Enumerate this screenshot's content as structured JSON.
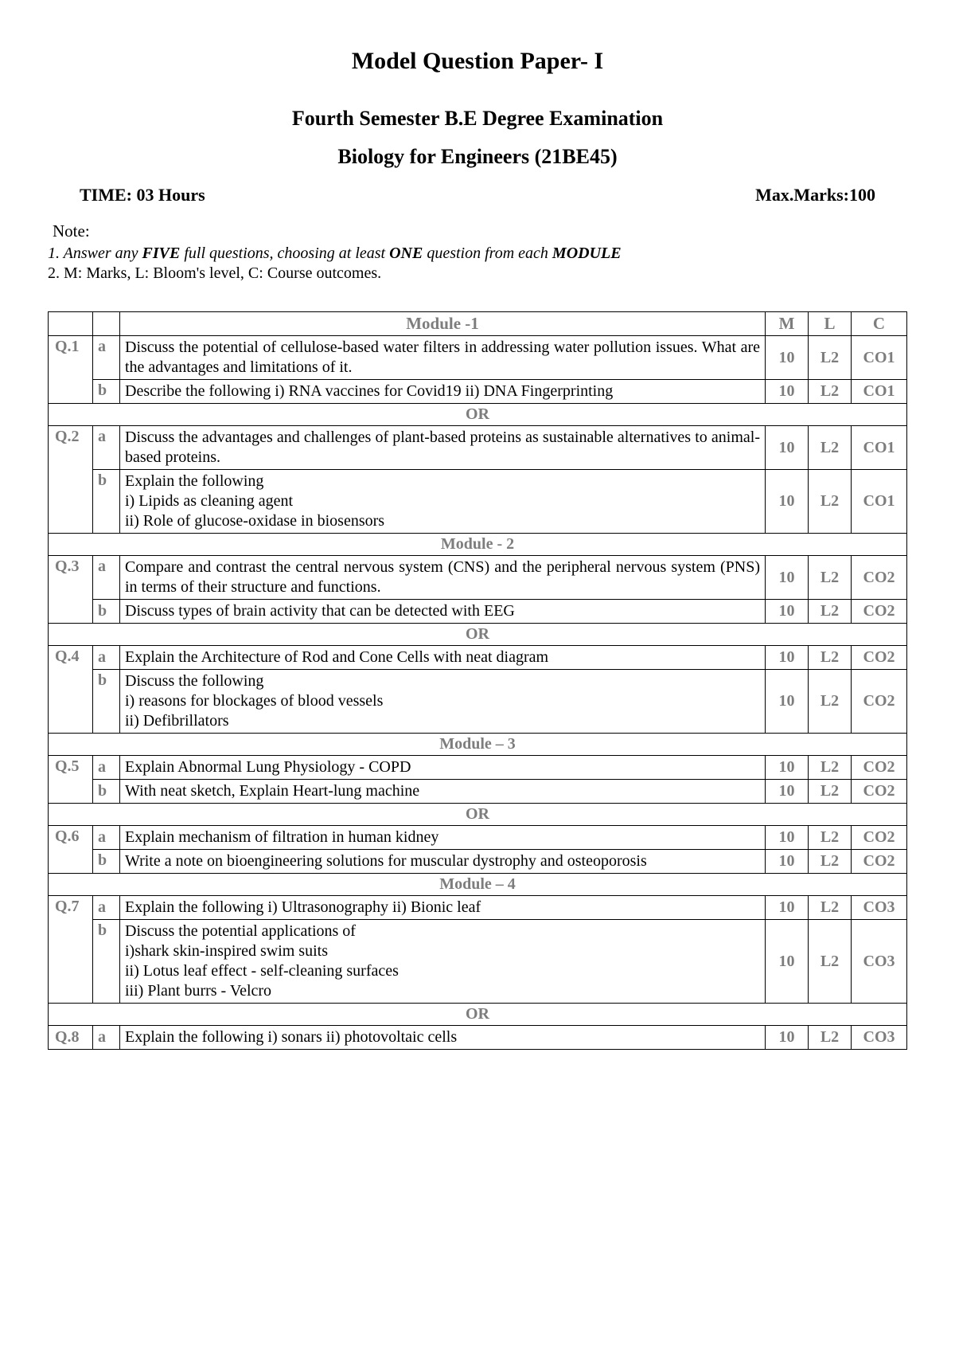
{
  "header": {
    "title": "Model Question Paper- I",
    "exam": "Fourth Semester B.E Degree Examination",
    "course": "Biology for Engineers (21BE45)",
    "time_label": "TIME: 03 Hours",
    "marks_label": "Max.Marks:100",
    "note_label": "Note:",
    "note1_prefix": "1. Answer any ",
    "note1_five": "FIVE",
    "note1_mid": " full questions, choosing at least ",
    "note1_one": "ONE",
    "note1_mid2": " question from each ",
    "note1_module": "MODULE",
    "note2": "2. M: Marks, L: Bloom's level, C: Course outcomes."
  },
  "table": {
    "col_m": "M",
    "col_l": "L",
    "col_c": "C",
    "or_label": "OR",
    "modules": {
      "m1": "Module -1",
      "m2": "Module - 2",
      "m3": "Module – 3",
      "m4": "Module – 4"
    },
    "q1": {
      "num": "Q.1",
      "a": {
        "p": "a",
        "text": "Discuss the potential of cellulose-based water filters in addressing water pollution issues. What are the advantages and limitations of it.",
        "m": "10",
        "l": "L2",
        "c": "CO1"
      },
      "b": {
        "p": "b",
        "text": "Describe the following i) RNA vaccines for Covid19 ii) DNA Fingerprinting",
        "m": "10",
        "l": "L2",
        "c": "CO1"
      }
    },
    "q2": {
      "num": "Q.2",
      "a": {
        "p": "a",
        "text": "Discuss the advantages and challenges of plant-based proteins as sustainable alternatives to animal-based proteins.",
        "m": "10",
        "l": "L2",
        "c": "CO1"
      },
      "b": {
        "p": "b",
        "text": "Explain the following\ni) Lipids as cleaning agent\nii) Role of glucose-oxidase in biosensors",
        "m": "10",
        "l": "L2",
        "c": "CO1"
      }
    },
    "q3": {
      "num": "Q.3",
      "a": {
        "p": "a",
        "text": "Compare and contrast the central nervous system (CNS) and the peripheral nervous system (PNS) in terms of their structure and functions.",
        "m": "10",
        "l": "L2",
        "c": "CO2"
      },
      "b": {
        "p": "b",
        "text": "Discuss types of brain activity that can be detected with EEG",
        "m": "10",
        "l": "L2",
        "c": "CO2"
      }
    },
    "q4": {
      "num": "Q.4",
      "a": {
        "p": "a",
        "text": "Explain the Architecture of Rod and Cone Cells with neat diagram",
        "m": "10",
        "l": "L2",
        "c": "CO2"
      },
      "b": {
        "p": "b",
        "text": "Discuss the following\ni) reasons for blockages of blood vessels\nii) Defibrillators",
        "m": "10",
        "l": "L2",
        "c": "CO2"
      }
    },
    "q5": {
      "num": "Q.5",
      "a": {
        "p": "a",
        "text": "Explain Abnormal Lung Physiology - COPD",
        "m": "10",
        "l": "L2",
        "c": "CO2"
      },
      "b": {
        "p": "b",
        "text": "With neat sketch, Explain Heart-lung machine",
        "m": "10",
        "l": "L2",
        "c": "CO2"
      }
    },
    "q6": {
      "num": "Q.6",
      "a": {
        "p": "a",
        "text": "Explain mechanism of filtration in human kidney",
        "m": "10",
        "l": "L2",
        "c": "CO2"
      },
      "b": {
        "p": "b",
        "text": "Write a note on bioengineering solutions for muscular dystrophy and osteoporosis",
        "m": "10",
        "l": "L2",
        "c": "CO2"
      }
    },
    "q7": {
      "num": "Q.7",
      "a": {
        "p": "a",
        "text": "Explain the following i) Ultrasonography ii) Bionic leaf",
        "m": "10",
        "l": "L2",
        "c": "CO3"
      },
      "b": {
        "p": "b",
        "text": "Discuss the potential applications of\ni)shark skin-inspired swim suits\nii) Lotus leaf effect - self-cleaning surfaces\niii) Plant burrs - Velcro",
        "m": "10",
        "l": "L2",
        "c": "CO3"
      }
    },
    "q8": {
      "num": "Q.8",
      "a": {
        "p": "a",
        "text": "Explain the following i) sonars ii) photovoltaic cells",
        "m": "10",
        "l": "L2",
        "c": "CO3"
      }
    }
  }
}
